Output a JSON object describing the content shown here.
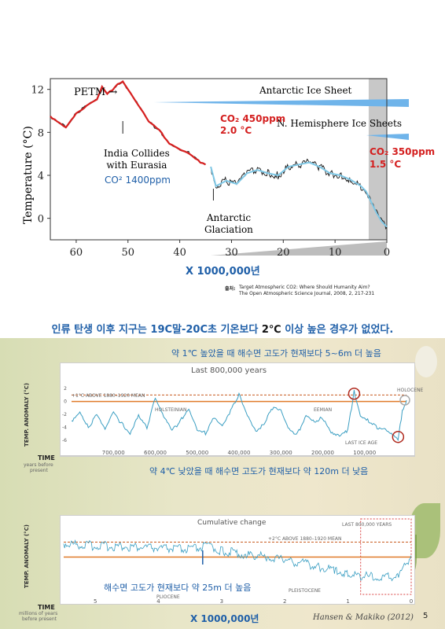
{
  "page_number": "5",
  "top_chart": {
    "annotations": {
      "petm": "PETM →",
      "india": "India Collides\nwith Eurasia",
      "co2_1400": "CO² 1400ppm",
      "antarctic_glaciation": "Antarctic\nGlaciation",
      "antarctic_ice_sheet": "Antarctic Ice Sheet",
      "nh_ice_sheets": "N. Hemisphere Ice Sheets",
      "co2_450": "CO₂ 450ppm",
      "temp_2": "2.0 °C",
      "co2_350": "CO₂ 350ppm",
      "temp_15": "1.5 °C"
    },
    "ylabel": "Temperature (°C)",
    "xlabel": "X 1000,000년",
    "source_label": "출처:",
    "source_line1": "Target Atmospheric CO2: Where Should Humanity Aim?",
    "source_line2": "The Open Atmospheric Science Journal, 2008, 2, 217-231"
  },
  "caption": {
    "part1": "인류 탄생 이후 지구는  19C말-20C초 기온보다 ",
    "part2": "2℃",
    "part3": " 이상 높은 경우가 없었다."
  },
  "middle_chart": {
    "note_top": "약 1℃ 높았을 때 해수면 고도가 현재보다 5~6m 더 높음",
    "title": "Last 800,000 years",
    "ref_label": "+1°C ABOVE 1880–1920 MEAN",
    "holocene": "HOLOCENE",
    "holsteinian": "HOLSTEINIAN",
    "eemian": "EEMIAN",
    "last_ice_age": "LAST ICE AGE",
    "ylabel": "TEMP. ANOMALY (°C)",
    "time_label": "TIME",
    "time_sub1": "years before",
    "time_sub2": "present",
    "note_bottom": "약 4℃ 낮았을 때 해수면 고도가 현재보다 약 120m 더 낮음"
  },
  "bottom_chart": {
    "title": "Cumulative change",
    "ref_label": "+2°C ABOVE 1880–1920 MEAN",
    "last800": "LAST 800,000 YEARS",
    "pliocene": "PLIOCENE",
    "pleistocene": "PLEISTOCENE",
    "note": "해수면 고도가 현재보다 약 25m 더 높음",
    "ylabel": "TEMP. ANOMALY (°C)",
    "time_label": "TIME",
    "time_sub1": "millions of years",
    "time_sub2": "before present",
    "xlabel": "X 1000,000년",
    "credit": "Hansen & Makiko (2012)"
  },
  "chart_data": [
    {
      "type": "line",
      "ylabel": "Temperature (°C)",
      "xlabel": "X 1000,000년",
      "xlim": [
        65,
        0
      ],
      "ylim": [
        -2,
        13
      ],
      "x_ticks": [
        60,
        50,
        40,
        30,
        20,
        10,
        0
      ],
      "y_ticks": [
        0,
        4,
        8,
        12
      ],
      "series": [
        {
          "color": "#d62020",
          "x": [
            65,
            62,
            60,
            58,
            56,
            55,
            54,
            53,
            52,
            51,
            50,
            48,
            46,
            44,
            42,
            40,
            38,
            36,
            35
          ],
          "y": [
            9.5,
            8.5,
            9.8,
            10.5,
            11,
            12.2,
            11.5,
            12,
            12.5,
            12.8,
            12,
            10.5,
            9,
            8.2,
            7,
            6.5,
            6,
            5.2,
            5
          ]
        },
        {
          "color": "#111111",
          "x": [
            34,
            33,
            31,
            29,
            27,
            25,
            23,
            21,
            19,
            17,
            15,
            13,
            11,
            9,
            7,
            5,
            4,
            3,
            2,
            1,
            0
          ],
          "y": [
            4.8,
            3,
            3.5,
            3.2,
            4.2,
            4.5,
            4.2,
            4,
            4.8,
            5,
            5.2,
            4.8,
            4.2,
            4,
            3.6,
            3,
            2.5,
            1.5,
            0.5,
            -0.3,
            -0.8
          ]
        }
      ]
    },
    {
      "type": "line",
      "title": "Last 800,000 years",
      "ylabel": "TEMP. ANOMALY (°C)",
      "xlim": [
        800000,
        0
      ],
      "ylim": [
        -7,
        3
      ],
      "x_ticks": [
        700000,
        600000,
        500000,
        400000,
        300000,
        200000,
        100000
      ],
      "y_ticks": [
        2,
        0,
        -2,
        -4,
        -6
      ],
      "series": [
        {
          "color": "#3a9ec2",
          "x": [
            800000,
            780000,
            760000,
            740000,
            720000,
            700000,
            680000,
            660000,
            640000,
            620000,
            600000,
            580000,
            560000,
            540000,
            520000,
            500000,
            480000,
            460000,
            440000,
            420000,
            400000,
            380000,
            360000,
            340000,
            320000,
            300000,
            280000,
            260000,
            240000,
            220000,
            200000,
            180000,
            160000,
            140000,
            125000,
            110000,
            90000,
            70000,
            50000,
            30000,
            20000,
            10000,
            0
          ],
          "y": [
            -3,
            -1.5,
            -4,
            -2,
            -4.5,
            -1.8,
            -3.5,
            -4.8,
            -2,
            -4,
            0.5,
            -2.5,
            -4.5,
            -3,
            -1,
            -4.2,
            -5,
            -2.5,
            -4,
            -1.5,
            1.2,
            -2,
            -4.5,
            -3.5,
            -1,
            -1.5,
            -4.5,
            -5,
            -2,
            -3,
            -2.5,
            -5,
            -5.5,
            -4.5,
            1.5,
            -2,
            -3,
            -4,
            -4.5,
            -5.5,
            -6,
            -1.5,
            0.2
          ]
        }
      ]
    },
    {
      "type": "line",
      "title": "Cumulative change",
      "ylabel": "TEMP. ANOMALY (°C)",
      "xlim": [
        5.5,
        0
      ],
      "ylim": [
        -5,
        3
      ],
      "x_ticks": [
        5,
        4,
        3,
        2,
        1,
        0
      ],
      "y_ticks": [
        2,
        0,
        -2,
        -4
      ],
      "series": [
        {
          "color": "#3a9ec2",
          "x": [
            5.5,
            5,
            4.5,
            4,
            3.5,
            3.2,
            3,
            2.7,
            2.5,
            2.2,
            2,
            1.7,
            1.5,
            1.2,
            1,
            0.8,
            0.5,
            0.2,
            0
          ],
          "y": [
            1.8,
            1.5,
            1.4,
            1.2,
            1,
            1.5,
            0.8,
            0.5,
            0.2,
            0,
            -0.5,
            -0.8,
            -1.2,
            -1.8,
            -2.2,
            -2.5,
            -2.8,
            -2.5,
            0.2
          ]
        }
      ]
    }
  ]
}
